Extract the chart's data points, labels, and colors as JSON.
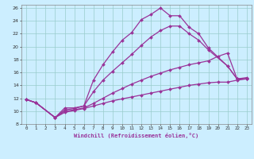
{
  "xlabel": "Windchill (Refroidissement éolien,°C)",
  "xlim": [
    -0.5,
    23.5
  ],
  "ylim": [
    8,
    26.5
  ],
  "xticks": [
    0,
    1,
    2,
    3,
    4,
    5,
    6,
    7,
    8,
    9,
    10,
    11,
    12,
    13,
    14,
    15,
    16,
    17,
    18,
    19,
    20,
    21,
    22,
    23
  ],
  "yticks": [
    8,
    10,
    12,
    14,
    16,
    18,
    20,
    22,
    24,
    26
  ],
  "background_color": "#cceeff",
  "grid_color": "#99cccc",
  "line_color": "#993399",
  "line_width": 0.9,
  "marker": "D",
  "marker_size": 2.0,
  "lines": [
    {
      "x": [
        0,
        1,
        3,
        4,
        5,
        6,
        7,
        8,
        9,
        10,
        11,
        12,
        13,
        14,
        15,
        16,
        17,
        18,
        19,
        21,
        22,
        23
      ],
      "y": [
        11.8,
        11.3,
        9.0,
        10.5,
        10.5,
        10.8,
        14.8,
        17.2,
        19.2,
        21.0,
        22.2,
        24.2,
        25.0,
        26.0,
        24.8,
        24.8,
        23.0,
        22.0,
        19.8,
        17.0,
        15.0,
        15.0
      ]
    },
    {
      "x": [
        0,
        1,
        3,
        4,
        5,
        6,
        7,
        8,
        9,
        10,
        11,
        12,
        13,
        14,
        15,
        16,
        17,
        18,
        19,
        21,
        22,
        23
      ],
      "y": [
        11.8,
        11.3,
        9.0,
        10.2,
        10.4,
        10.8,
        13.0,
        14.8,
        16.2,
        17.5,
        18.8,
        20.2,
        21.5,
        22.5,
        23.2,
        23.2,
        22.0,
        21.0,
        19.5,
        17.0,
        15.0,
        15.0
      ]
    },
    {
      "x": [
        0,
        1,
        3,
        4,
        5,
        6,
        7,
        8,
        9,
        10,
        11,
        12,
        13,
        14,
        15,
        16,
        17,
        18,
        19,
        20,
        21,
        22,
        23
      ],
      "y": [
        11.8,
        11.3,
        9.0,
        10.0,
        10.2,
        10.5,
        11.2,
        12.0,
        12.8,
        13.5,
        14.2,
        14.8,
        15.4,
        15.9,
        16.4,
        16.8,
        17.2,
        17.5,
        17.8,
        18.5,
        19.0,
        15.0,
        15.2
      ]
    },
    {
      "x": [
        0,
        1,
        3,
        4,
        5,
        6,
        7,
        8,
        9,
        10,
        11,
        12,
        13,
        14,
        15,
        16,
        17,
        18,
        19,
        20,
        21,
        22,
        23
      ],
      "y": [
        11.8,
        11.3,
        9.0,
        9.8,
        10.1,
        10.4,
        10.8,
        11.2,
        11.6,
        11.9,
        12.2,
        12.5,
        12.8,
        13.1,
        13.4,
        13.7,
        14.0,
        14.2,
        14.4,
        14.5,
        14.5,
        14.8,
        15.0
      ]
    }
  ]
}
